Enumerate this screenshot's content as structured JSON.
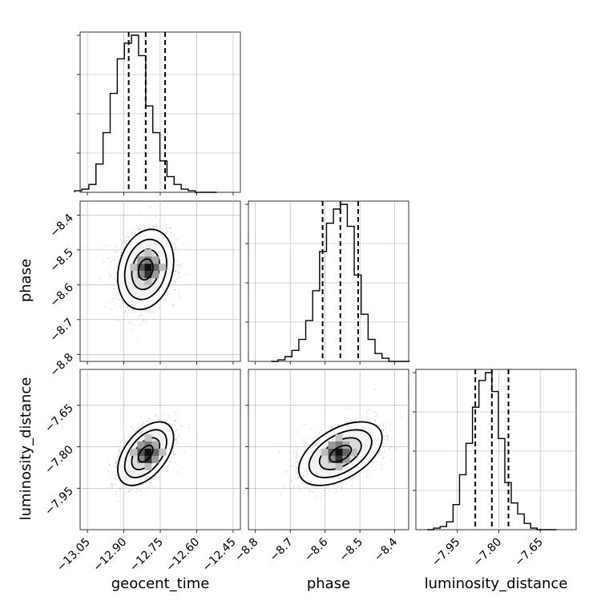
{
  "chart_data": {
    "type": "corner",
    "parameters": [
      "geocent_time",
      "phase",
      "luminosity_distance"
    ],
    "ranges": {
      "geocent_time": [
        -13.08,
        -12.42
      ],
      "phase": [
        -8.82,
        -8.36
      ],
      "luminosity_distance": [
        -8.1,
        -7.52
      ]
    },
    "ticks": {
      "geocent_time": [
        "-13.05",
        "-12.90",
        "-12.75",
        "-12.60",
        "-12.45"
      ],
      "phase": [
        "-8.8",
        "-8.7",
        "-8.6",
        "-8.5",
        "-8.4"
      ],
      "luminosity_distance": [
        "-7.95",
        "-7.80",
        "-7.65"
      ]
    },
    "quantiles": {
      "geocent_time": [
        -12.88,
        -12.81,
        -12.73
      ],
      "phase": [
        -8.607,
        -8.556,
        -8.505
      ],
      "luminosity_distance": [
        -7.885,
        -7.825,
        -7.765
      ]
    },
    "hist_bins": 20,
    "histograms": {
      "geocent_time": [
        0.01,
        0.02,
        0.05,
        0.18,
        0.38,
        0.63,
        0.85,
        0.95,
        1.0,
        0.87,
        0.55,
        0.38,
        0.2,
        0.1,
        0.05,
        0.02,
        0.01,
        0.0,
        0.0,
        0.0
      ],
      "phase": [
        0.0,
        0.01,
        0.03,
        0.07,
        0.14,
        0.26,
        0.45,
        0.7,
        0.88,
        0.97,
        1.0,
        0.86,
        0.55,
        0.3,
        0.14,
        0.05,
        0.02,
        0.0,
        0.0,
        0.0
      ],
      "luminosity_distance": [
        0.0,
        0.01,
        0.02,
        0.05,
        0.16,
        0.35,
        0.55,
        0.78,
        0.95,
        1.0,
        0.88,
        0.58,
        0.3,
        0.17,
        0.1,
        0.04,
        0.01,
        0.0,
        0.0,
        0.0
      ]
    },
    "joint": [
      {
        "x": "geocent_time",
        "y": "phase",
        "center": [
          -12.81,
          -8.556
        ],
        "sigma": [
          0.05,
          0.05
        ],
        "rho": 0.2,
        "peak_cell": [
          -12.8,
          -8.55
        ]
      },
      {
        "x": "geocent_time",
        "y": "luminosity_distance",
        "center": [
          -12.81,
          -7.825
        ],
        "sigma": [
          0.05,
          0.05
        ],
        "rho": 0.5,
        "peak_cell": [
          -12.8,
          -7.82
        ]
      },
      {
        "x": "phase",
        "y": "luminosity_distance",
        "center": [
          -8.556,
          -7.825
        ],
        "sigma": [
          0.052,
          0.05
        ],
        "rho": 0.5,
        "peak_cell": [
          -8.56,
          -7.82
        ]
      }
    ],
    "contour_sigmas": [
      0.5,
      1.0,
      1.5,
      2.0
    ],
    "grid": true,
    "xlabel_labels": [
      "geocent_time",
      "phase",
      "luminosity_distance"
    ],
    "ylabel_labels": [
      "phase",
      "luminosity_distance"
    ],
    "colors": {
      "line": "#000000",
      "grid": "#b0b0b0",
      "points": "#9a9a9a",
      "quantile": "#000000"
    }
  }
}
